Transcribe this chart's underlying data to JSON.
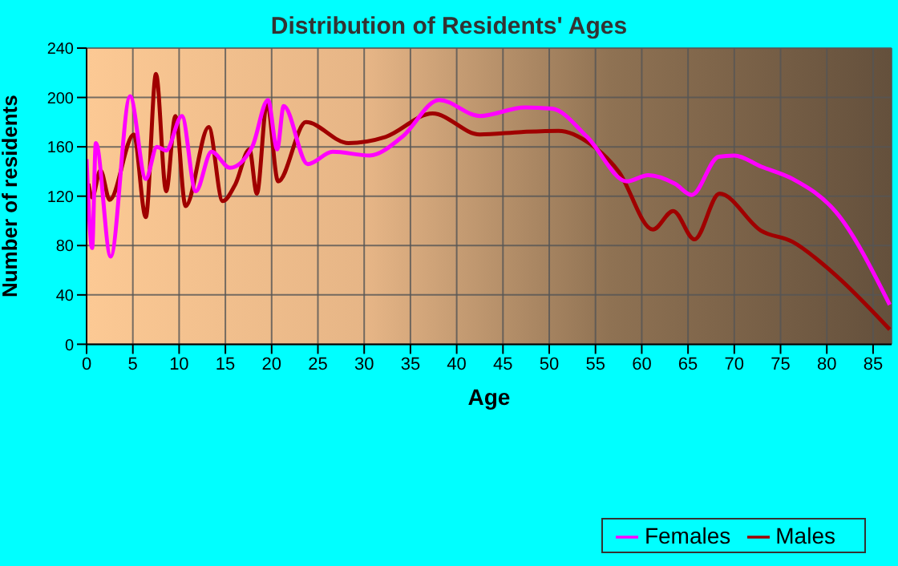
{
  "chart_data": {
    "type": "line",
    "title": "Distribution of Residents' Ages",
    "xlabel": "Age",
    "ylabel": "Number of residents",
    "xlim": [
      0,
      87
    ],
    "xticks": [
      0,
      5,
      10,
      15,
      20,
      25,
      30,
      35,
      40,
      45,
      50,
      55,
      60,
      65,
      70,
      75,
      80,
      85
    ],
    "ylim": [
      0,
      240
    ],
    "yticks": [
      0,
      40,
      80,
      120,
      160,
      200,
      240
    ],
    "grid": true,
    "legend": "bottom right",
    "marker": "none",
    "line_style": "solid",
    "series": [
      {
        "name": "Males",
        "color": "#a00000",
        "x": [
          0.2,
          0.6,
          1.5,
          2.5,
          5.1,
          6.4,
          7.5,
          8.6,
          9.6,
          10.7,
          13.2,
          14.7,
          16.1,
          17.6,
          18.4,
          19.5,
          20.7,
          23.7,
          28.3,
          32.3,
          37.4,
          42.5,
          47,
          51,
          54.5,
          57.5,
          61.2,
          63.4,
          65.7,
          68.4,
          72.9,
          76.3,
          80.5,
          86.8
        ],
        "values": [
          130,
          119,
          141,
          117,
          170,
          103,
          219,
          124,
          185,
          112,
          176,
          116,
          130,
          158,
          122,
          196,
          132,
          180,
          163,
          168,
          187,
          170,
          172,
          173,
          162,
          140,
          93,
          108,
          85,
          122,
          92,
          83,
          59,
          12
        ]
      },
      {
        "name": "Females",
        "color": "#ff00ff",
        "x": [
          0,
          0.6,
          1,
          2.6,
          4.7,
          6.4,
          7.6,
          8.6,
          10.3,
          11.8,
          13.5,
          15.5,
          17.9,
          19.6,
          20.6,
          21.3,
          23.9,
          26.6,
          30.6,
          34.1,
          38.1,
          42.5,
          47.4,
          50.3,
          54.1,
          58.4,
          60.7,
          63.6,
          65.4,
          68.3,
          70,
          72.9,
          76.3,
          81,
          86.8
        ],
        "values": [
          150,
          78,
          163,
          71,
          201,
          134,
          160,
          157,
          185,
          124,
          156,
          143,
          160,
          198,
          158,
          193,
          146,
          156,
          153,
          168,
          198,
          185,
          192,
          191,
          168,
          132,
          137,
          130,
          121,
          152,
          153,
          144,
          134,
          107,
          32
        ]
      }
    ]
  }
}
